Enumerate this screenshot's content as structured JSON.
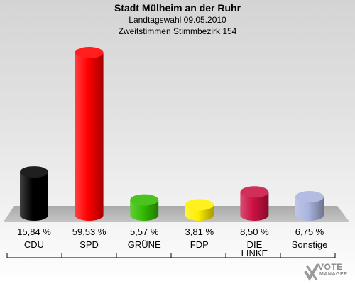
{
  "header": {
    "title": "Stadt Mülheim an der Ruhr",
    "subtitle1": "Landtagswahl 09.05.2010",
    "subtitle2": "Zweitstimmen Stimmbezirk 154"
  },
  "chart_data": {
    "type": "bar",
    "title": "Stadt Mülheim an der Ruhr",
    "subtitle": "Landtagswahl 09.05.2010 — Zweitstimmen Stimmbezirk 154",
    "categories": [
      "CDU",
      "SPD",
      "GRÜNE",
      "FDP",
      "DIE LINKE",
      "Sonstige"
    ],
    "category_lines": [
      [
        "CDU"
      ],
      [
        "SPD"
      ],
      [
        "GRÜNE"
      ],
      [
        "FDP"
      ],
      [
        "DIE",
        "LINKE"
      ],
      [
        "Sonstige"
      ]
    ],
    "values": [
      15.84,
      59.53,
      5.57,
      3.81,
      8.5,
      6.75
    ],
    "value_labels": [
      "15,84 %",
      "59,53 %",
      "5,57 %",
      "3,81 %",
      "8,50 %",
      "6,75 %"
    ],
    "colors": [
      "#000000",
      "#ff0000",
      "#33bb00",
      "#ffee00",
      "#cc1144",
      "#aab4dd"
    ],
    "unit": "%",
    "xlabel": "",
    "ylabel": "",
    "ylim": [
      0,
      60
    ],
    "grid": false,
    "legend": "none"
  },
  "logo": {
    "line1": "VOTE",
    "line2": "MANAGER"
  }
}
